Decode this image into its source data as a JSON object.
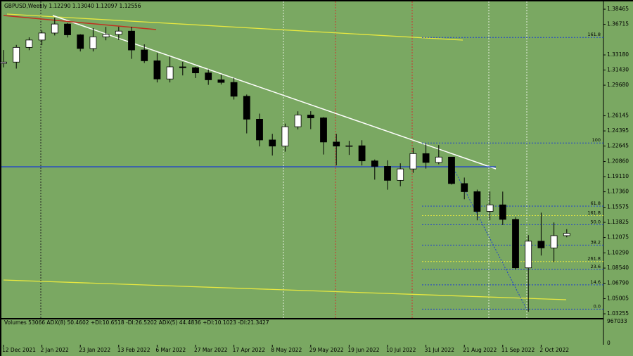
{
  "chart_data": {
    "type": "candlestick",
    "title": "GBPUSD,Weekly  1.12290 1.13040 1.12097 1.12556",
    "categories": [
      "12 Dec 2021",
      null,
      null,
      "2 Jan 2022",
      null,
      null,
      "23 Jan 2022",
      null,
      null,
      "13 Feb 2022",
      null,
      null,
      "6 Mar 2022",
      null,
      null,
      "27 Mar 2022",
      null,
      null,
      "17 Apr 2022",
      null,
      null,
      "8 May 2022",
      null,
      null,
      "29 May 2022",
      null,
      null,
      "19 Jun 2022",
      null,
      null,
      "10 Jul 2022",
      null,
      null,
      "31 Jul 2022",
      null,
      null,
      "21 Aug 2022",
      null,
      null,
      "11 Sep 2022",
      null,
      null,
      "2 Oct 2022",
      null,
      null
    ],
    "open": [
      1.322,
      1.3235,
      1.3405,
      1.349,
      1.3571,
      1.3675,
      1.355,
      1.3392,
      1.3527,
      1.3555,
      1.3593,
      1.3375,
      1.325,
      1.304,
      1.318,
      1.317,
      1.311,
      1.303,
      1.3,
      1.284,
      1.2575,
      1.2335,
      1.2264,
      1.2488,
      1.2623,
      1.259,
      1.2311,
      1.2264,
      1.2268,
      1.2093,
      1.203,
      1.1868,
      1.2,
      1.2177,
      1.2075,
      1.2137,
      1.1831,
      1.1737,
      1.1509,
      1.1585,
      1.1417,
      1.0857,
      1.1165,
      1.1087,
      1.1229
    ],
    "high": [
      1.3374,
      1.3434,
      1.3521,
      1.3599,
      1.3749,
      1.3686,
      1.3558,
      1.3628,
      1.3642,
      1.3644,
      1.3644,
      1.344,
      1.334,
      1.3298,
      1.3238,
      1.318,
      1.315,
      1.309,
      1.3052,
      1.286,
      1.2639,
      1.2406,
      1.2524,
      1.2666,
      1.2667,
      1.2599,
      1.2406,
      1.2325,
      1.2332,
      1.2109,
      1.21,
      1.2065,
      1.2245,
      1.2293,
      1.2276,
      1.2139,
      1.19,
      1.1761,
      1.1739,
      1.1738,
      1.1442,
      1.1235,
      1.1495,
      1.1381,
      1.1304
    ],
    "low": [
      1.3174,
      1.316,
      1.3373,
      1.3431,
      1.3543,
      1.352,
      1.3358,
      1.3358,
      1.3487,
      1.3491,
      1.3273,
      1.3225,
      1.3,
      1.3,
      1.3081,
      1.3051,
      1.2972,
      1.2976,
      1.2802,
      1.2411,
      1.226,
      1.2155,
      1.22,
      1.2457,
      1.246,
      1.2167,
      1.2041,
      1.2162,
      1.204,
      1.1876,
      1.176,
      1.18,
      1.1955,
      1.2004,
      1.2054,
      1.1819,
      1.1649,
      1.1406,
      1.1407,
      1.1351,
      1.0839,
      1.035,
      1.0999,
      1.0924,
      1.12097
    ],
    "close": [
      1.3235,
      1.3405,
      1.349,
      1.3571,
      1.3675,
      1.355,
      1.3392,
      1.3527,
      1.3555,
      1.3593,
      1.3375,
      1.325,
      1.304,
      1.318,
      1.317,
      1.311,
      1.303,
      1.3,
      1.284,
      1.2575,
      1.2335,
      1.2264,
      1.2488,
      1.2623,
      1.259,
      1.2311,
      1.2264,
      1.2268,
      1.2093,
      1.203,
      1.1868,
      1.2,
      1.2177,
      1.2075,
      1.2137,
      1.1831,
      1.1737,
      1.1509,
      1.1585,
      1.1417,
      1.0857,
      1.1165,
      1.1087,
      1.1229,
      1.12556
    ],
    "up_color": "#ffffff",
    "down_color": "#000000",
    "background": "#7aa862",
    "ylim": [
      1.0277,
      1.3912
    ],
    "yticks": [
      1.38465,
      1.36715,
      {
        "value": 1.3318,
        "label": "1.33180"
      },
      {
        "value": 1.3143,
        "label": "1.31430"
      },
      {
        "value": 1.2968,
        "label": "1.29680"
      },
      1.26145,
      1.24395,
      1.22645,
      {
        "value": 1.2086,
        "label": "1.20860"
      },
      {
        "value": 1.1911,
        "label": "1.19110"
      },
      {
        "value": 1.1736,
        "label": "1.17360"
      },
      1.15575,
      1.13825,
      1.12075,
      {
        "value": 1.1029,
        "label": "1.10290"
      },
      {
        "value": 1.0854,
        "label": "1.08540"
      },
      {
        "value": 1.0679,
        "label": "1.06790"
      },
      1.05005,
      1.03255
    ],
    "fib_levels": [
      {
        "label": "161.8",
        "value": 1.352,
        "color": "#1f3fd0"
      },
      {
        "label": "100",
        "value": 1.23,
        "color": "#1f3fd0"
      },
      {
        "label": "61.8",
        "value": 1.157,
        "color": "#1f3fd0"
      },
      {
        "label": "161.8",
        "value": 1.146,
        "color": "#e8e840"
      },
      {
        "label": "50.0",
        "value": 1.1355,
        "color": "#1f3fd0"
      },
      {
        "label": "38.2",
        "value": 1.112,
        "color": "#1f3fd0"
      },
      {
        "label": "261.8",
        "value": 1.093,
        "color": "#e8e840"
      },
      {
        "label": "23.6",
        "value": 1.084,
        "color": "#1f3fd0"
      },
      {
        "label": "14.6",
        "value": 1.066,
        "color": "#1f3fd0"
      },
      {
        "label": "0.0",
        "value": 1.038,
        "color": "#1f3fd0"
      }
    ],
    "support_line": 1.2025,
    "volume_label": "Volumes 53066  ADX(8) 50.4602 +DI:10.6518 -DI:26.5202  ADX(5) 44.4836 +DI:10.1023 -DI:21.3427",
    "vol_ylim": [
      0,
      967033
    ],
    "vol_yticks": [
      967033,
      0
    ]
  }
}
